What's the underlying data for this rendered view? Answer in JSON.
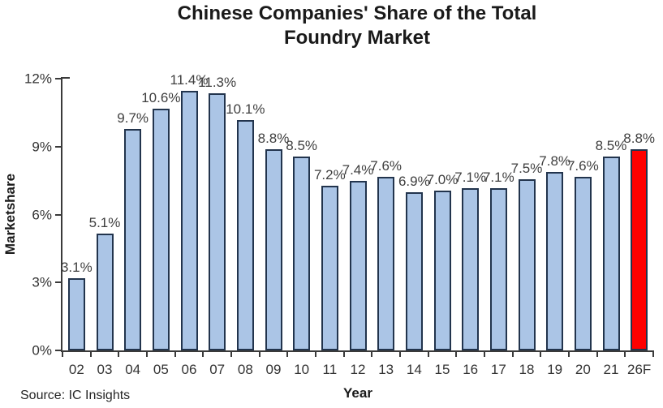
{
  "chart_data": {
    "type": "bar",
    "title_lines": [
      "Chinese Companies' Share of the Total",
      "Foundry Market"
    ],
    "xlabel": "Year",
    "ylabel": "Marketshare",
    "categories": [
      "02",
      "03",
      "04",
      "05",
      "06",
      "07",
      "08",
      "09",
      "10",
      "11",
      "12",
      "13",
      "14",
      "15",
      "16",
      "17",
      "18",
      "19",
      "20",
      "21",
      "26F"
    ],
    "values": [
      3.1,
      5.1,
      9.7,
      10.6,
      11.4,
      11.3,
      10.1,
      8.8,
      8.5,
      7.2,
      7.4,
      7.6,
      6.9,
      7.0,
      7.1,
      7.1,
      7.5,
      7.8,
      7.6,
      8.5,
      8.8
    ],
    "data_labels": [
      "3.1%",
      "5.1%",
      "9.7%",
      "10.6%",
      "11.4%",
      "11.3%",
      "10.1%",
      "8.8%",
      "8.5%",
      "7.2%",
      "7.4%",
      "7.6%",
      "6.9%",
      "7.0%",
      "7.1%",
      "7.1%",
      "7.5%",
      "7.8%",
      "7.6%",
      "8.5%",
      "8.8%"
    ],
    "highlight_index": 20,
    "ylim": [
      0,
      12
    ],
    "ytick_values": [
      0,
      3,
      6,
      9,
      12
    ],
    "ytick_labels": [
      "0%",
      "3%",
      "6%",
      "9%",
      "12%"
    ],
    "grid": false,
    "legend": false,
    "colors": {
      "bar_fill": "#abc5e6",
      "bar_border": "#22344d",
      "highlight_fill": "#fe0000",
      "axis": "#3a3a3a",
      "label_text": "#3f3f3f"
    }
  },
  "source_note": "Source: IC Insights"
}
